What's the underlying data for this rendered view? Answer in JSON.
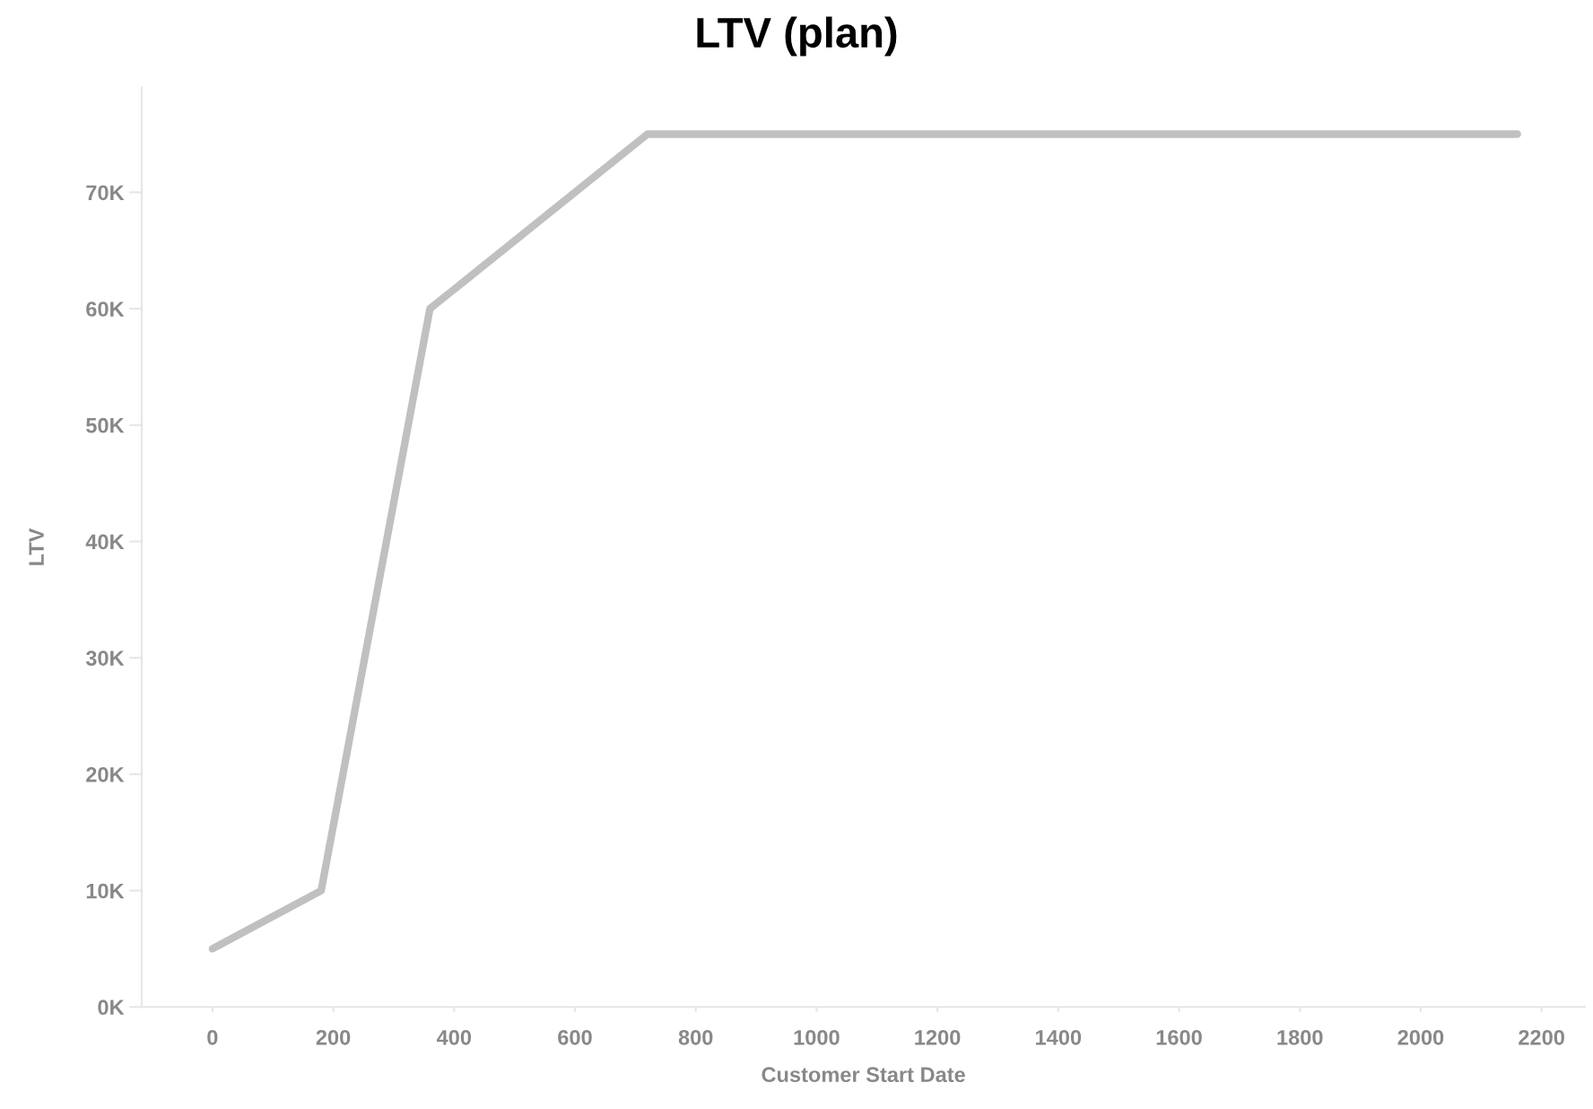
{
  "chart_data": {
    "type": "line",
    "title": "LTV (plan)",
    "xlabel": "Customer Start Date",
    "ylabel": "LTV",
    "x": [
      0,
      180,
      360,
      720,
      2160
    ],
    "series": [
      {
        "color": "#c0c0c0",
        "values": [
          5000,
          10000,
          60000,
          75000,
          75000
        ]
      }
    ],
    "xlim": [
      -117,
      2272
    ],
    "xticks": [
      0,
      200,
      400,
      600,
      800,
      1000,
      1200,
      1400,
      1600,
      1800,
      2000,
      2200
    ],
    "ylim": [
      0,
      79000
    ],
    "yticks": [
      {
        "value": 0,
        "label": "0K"
      },
      {
        "value": 10000,
        "label": "10K"
      },
      {
        "value": 20000,
        "label": "20K"
      },
      {
        "value": 30000,
        "label": "30K"
      },
      {
        "value": 40000,
        "label": "40K"
      },
      {
        "value": 50000,
        "label": "50K"
      },
      {
        "value": 60000,
        "label": "60K"
      },
      {
        "value": 70000,
        "label": "70K"
      }
    ],
    "grid": false,
    "marker": "none",
    "line_style": "solid"
  }
}
